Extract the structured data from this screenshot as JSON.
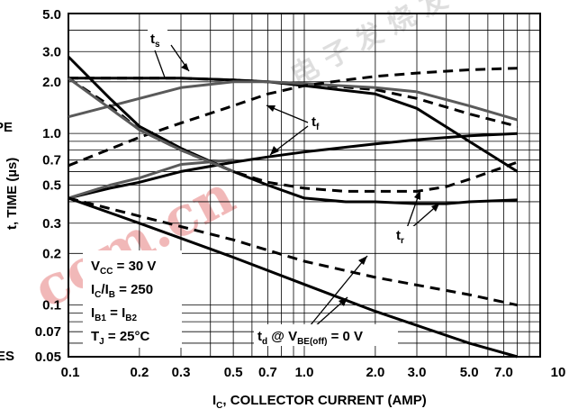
{
  "chart_data": {
    "type": "line",
    "scale": "log-log",
    "grid": true,
    "xlim": [
      0.1,
      10
    ],
    "ylim": [
      0.05,
      5.0
    ],
    "x_ticks": [
      "0.1",
      "0.2",
      "0.3",
      "0.5",
      "0.7",
      "1.0",
      "2.0",
      "3.0",
      "5.0",
      "7.0",
      "10"
    ],
    "y_ticks": [
      "5.0",
      "3.0",
      "2.0",
      "1.0",
      "0.7",
      "0.5",
      "0.3",
      "0.2",
      "0.1",
      "0.07",
      "0.05"
    ],
    "xlabel": {
      "prefix": "I",
      "sub": "C",
      "rest": ", COLLECTOR CURRENT (AMP)"
    },
    "ylabel": "t, TIME (µs)",
    "conditions": [
      {
        "a": "V",
        "sub1": "CC",
        "b": " = 30 V",
        "sub2": "",
        "c": ""
      },
      {
        "a": "I",
        "sub1": "C",
        "b": "/I",
        "sub2": "B",
        "c": " = 250"
      },
      {
        "a": "I",
        "sub1": "B1",
        "b": " = I",
        "sub2": "B2",
        "c": ""
      },
      {
        "a": "T",
        "sub1": "J",
        "b": " = 25°C",
        "sub2": "",
        "c": ""
      }
    ],
    "annotations": {
      "ts": {
        "main": "t",
        "sub": "s"
      },
      "tf": {
        "main": "t",
        "sub": "f"
      },
      "tr": {
        "main": "t",
        "sub": "r"
      },
      "td": {
        "main": "t",
        "sub": "d",
        "mid": " @ V",
        "sub2": "BE(off)",
        "tail": " = 0 V"
      }
    },
    "left_edge_text": {
      "top": "PE",
      "bottom": "ES"
    },
    "series": [
      {
        "key": "ts_solid",
        "dash": false,
        "x": [
          0.1,
          0.15,
          0.2,
          0.3,
          0.5,
          0.7,
          1.0,
          2.0,
          3.0,
          5.0,
          8.0
        ],
        "y": [
          2.1,
          2.1,
          2.1,
          2.1,
          2.05,
          2.0,
          1.9,
          1.7,
          1.4,
          0.9,
          0.6
        ]
      },
      {
        "key": "ts_dashed",
        "dash": true,
        "x": [
          0.1,
          0.15,
          0.2,
          0.3,
          0.5,
          0.7,
          1.0,
          2.0,
          3.0,
          5.0,
          8.0
        ],
        "y": [
          2.1,
          2.1,
          2.1,
          2.1,
          2.05,
          2.0,
          1.95,
          1.8,
          1.6,
          1.3,
          1.1
        ]
      },
      {
        "key": "tf_solid",
        "dash": false,
        "x": [
          0.1,
          0.2,
          0.3,
          0.5,
          0.7,
          1.0,
          2.0,
          3.0,
          5.0,
          8.0
        ],
        "y": [
          1.25,
          1.6,
          1.85,
          2.0,
          2.0,
          1.95,
          1.85,
          1.75,
          1.45,
          1.2
        ]
      },
      {
        "key": "tf_dashed",
        "dash": true,
        "x": [
          0.1,
          0.2,
          0.3,
          0.5,
          0.7,
          1.0,
          1.5,
          2.0,
          3.0,
          5.0,
          8.0
        ],
        "y": [
          0.65,
          0.95,
          1.15,
          1.45,
          1.7,
          1.9,
          2.05,
          2.15,
          2.25,
          2.35,
          2.4
        ]
      },
      {
        "key": "ttop_solid",
        "dash": false,
        "x": [
          0.1,
          0.15,
          0.2,
          0.3,
          0.5,
          0.7,
          1.0,
          2.0,
          3.0,
          5.0,
          8.0
        ],
        "y": [
          0.42,
          0.48,
          0.52,
          0.6,
          0.68,
          0.73,
          0.78,
          0.87,
          0.92,
          0.97,
          1.0
        ]
      },
      {
        "key": "tr_gray_up",
        "dash": false,
        "x": [
          0.1,
          0.15,
          0.2,
          0.3,
          0.5
        ],
        "y": [
          0.42,
          0.5,
          0.55,
          0.66,
          0.7
        ]
      },
      {
        "key": "tdec1_solid",
        "dash": false,
        "x": [
          0.1,
          0.15,
          0.2,
          0.3,
          0.5,
          0.7,
          1.0,
          1.5,
          2.0,
          3.0,
          4.0,
          5.0,
          8.0
        ],
        "y": [
          2.8,
          1.6,
          1.1,
          0.82,
          0.6,
          0.5,
          0.42,
          0.4,
          0.4,
          0.39,
          0.39,
          0.4,
          0.41
        ]
      },
      {
        "key": "tdec2_dashed",
        "dash": true,
        "x": [
          0.1,
          0.15,
          0.2,
          0.3,
          0.5,
          0.7,
          1.0,
          1.5,
          2.0,
          3.0,
          4.0,
          5.0,
          8.0
        ],
        "y": [
          2.1,
          1.45,
          1.05,
          0.8,
          0.6,
          0.52,
          0.48,
          0.46,
          0.46,
          0.46,
          0.49,
          0.54,
          0.68
        ]
      },
      {
        "key": "tdec3_gray",
        "dash": false,
        "x": [
          0.1,
          0.2,
          0.3,
          0.5
        ],
        "y": [
          2.1,
          1.05,
          0.8,
          0.6
        ]
      },
      {
        "key": "td_dashed",
        "dash": true,
        "x": [
          0.1,
          0.2,
          0.5,
          1.0,
          2.0,
          5.0,
          8.0
        ],
        "y": [
          0.42,
          0.33,
          0.24,
          0.18,
          0.145,
          0.115,
          0.1
        ]
      },
      {
        "key": "td_solid",
        "dash": false,
        "x": [
          0.1,
          0.2,
          0.5,
          1.0,
          2.0,
          5.0,
          8.0
        ],
        "y": [
          0.42,
          0.3,
          0.19,
          0.132,
          0.092,
          0.06,
          0.05
        ]
      }
    ]
  }
}
